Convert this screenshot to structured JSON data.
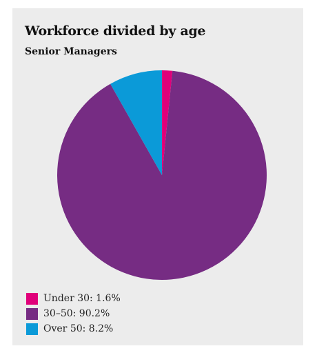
{
  "chart_data": {
    "type": "pie",
    "title": "Workforce divided by age",
    "subtitle": "Senior Managers",
    "slices": [
      {
        "label": "Under 30",
        "value": 1.6,
        "unit": "%",
        "color": "#e0007a",
        "legend_text": "Under 30: 1.6%"
      },
      {
        "label": "30–50",
        "value": 90.2,
        "unit": "%",
        "color": "#762c83",
        "legend_text": "30–50: 90.2%"
      },
      {
        "label": "Over 50",
        "value": 8.2,
        "unit": "%",
        "color": "#0b9ad8",
        "legend_text": "Over 50: 8.2%"
      }
    ],
    "start_angle": "top",
    "direction": "clockwise",
    "legend_position": "bottom-left"
  },
  "colors": {
    "card_background": "#ececec",
    "page_background": "#ffffff"
  }
}
